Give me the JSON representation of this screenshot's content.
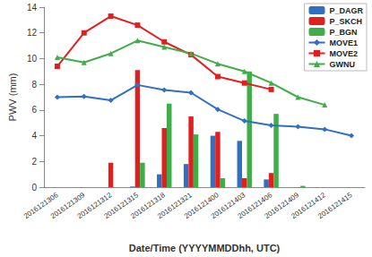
{
  "chart_data": {
    "type": "bar",
    "x_label": "Date/Time (YYYYMMDDhh, UTC)",
    "y_label": "PWV (mm)",
    "categories": [
      "2016121306",
      "2016121309",
      "2016121312",
      "2016121315",
      "2016121318",
      "2016121321",
      "2016121400",
      "2016121403",
      "2016121406",
      "2016121409",
      "2016121412",
      "2016121415"
    ],
    "series": [
      {
        "name": "P_DAGR",
        "type": "bar",
        "color": "#2f6fc4",
        "values": [
          null,
          null,
          null,
          0.05,
          1.0,
          1.8,
          4.0,
          3.6,
          0.6,
          null,
          null,
          null
        ]
      },
      {
        "name": "P_SKCH",
        "type": "bar",
        "color": "#e0201e",
        "values": [
          null,
          null,
          1.9,
          9.1,
          4.6,
          5.5,
          4.3,
          0.7,
          1.1,
          null,
          null,
          null
        ]
      },
      {
        "name": "P_BGN",
        "type": "bar",
        "color": "#3fae49",
        "values": [
          null,
          null,
          null,
          1.9,
          6.5,
          4.1,
          0.7,
          9.0,
          5.7,
          0.1,
          null,
          null
        ]
      },
      {
        "name": "MOVE1",
        "type": "line",
        "marker": "diamond",
        "color": "#2f6fc4",
        "values": [
          7.0,
          7.05,
          6.75,
          7.95,
          7.55,
          7.35,
          6.05,
          5.15,
          4.8,
          4.7,
          4.5,
          4.0
        ]
      },
      {
        "name": "MOVE2",
        "type": "line",
        "marker": "square",
        "color": "#e0201e",
        "values": [
          9.4,
          12.0,
          13.3,
          12.6,
          11.3,
          10.3,
          8.6,
          8.1,
          7.6,
          null,
          null,
          null
        ]
      },
      {
        "name": "GWNU",
        "type": "line",
        "marker": "triangle",
        "color": "#3fae49",
        "values": [
          10.1,
          9.7,
          10.4,
          11.4,
          10.9,
          10.4,
          9.6,
          9.0,
          8.1,
          7.0,
          6.4,
          null
        ]
      }
    ],
    "ylim": [
      0,
      14
    ],
    "yticks": [
      0,
      2,
      4,
      6,
      8,
      10,
      12,
      14
    ],
    "grid": false,
    "legend": "upper right"
  }
}
